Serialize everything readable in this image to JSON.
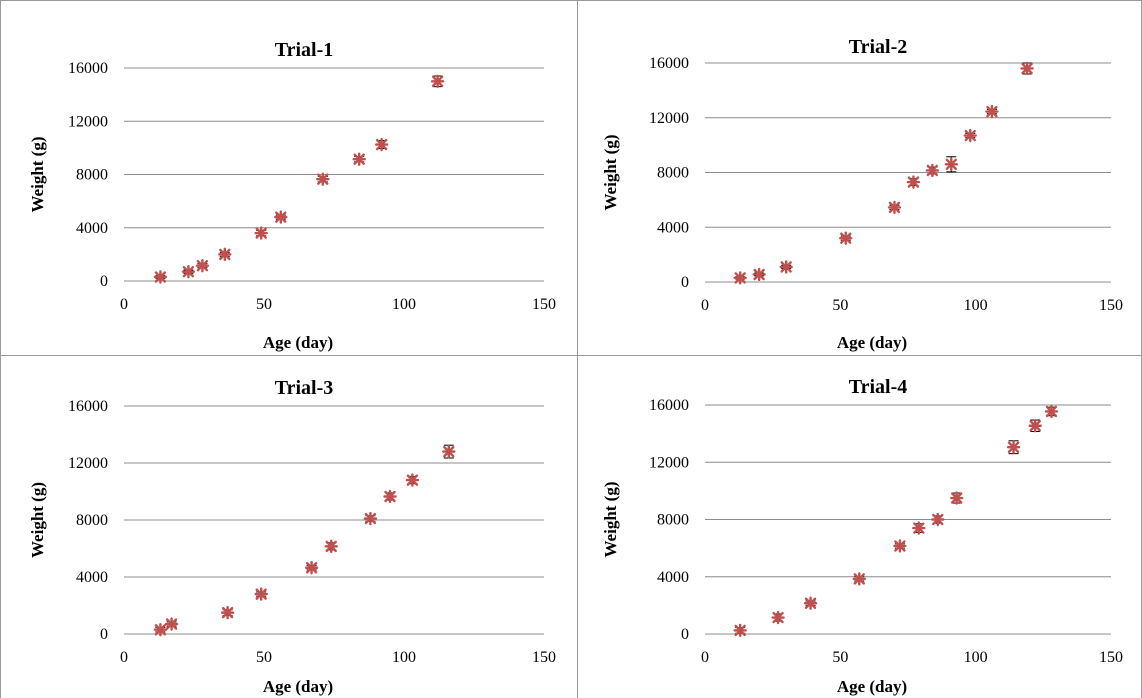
{
  "chart_data": [
    {
      "type": "scatter",
      "title": "Trial-1",
      "xlabel": "Age (day)",
      "ylabel": "Weight (g)",
      "xlim": [
        0,
        150
      ],
      "ylim": [
        0,
        16000
      ],
      "xticks": [
        "0",
        "50",
        "100",
        "150"
      ],
      "yticks": [
        "0",
        "4000",
        "8000",
        "12000",
        "16000"
      ],
      "grid": "horizontal",
      "marker_color": "#c0504d",
      "series": [
        {
          "x": [
            13,
            23,
            28,
            36,
            49,
            56,
            71,
            84,
            92,
            112
          ],
          "y": [
            300,
            700,
            1150,
            2000,
            3600,
            4800,
            7650,
            9150,
            10250,
            15000
          ],
          "error": [
            100,
            120,
            150,
            150,
            200,
            150,
            200,
            200,
            300,
            400
          ]
        }
      ]
    },
    {
      "type": "scatter",
      "title": "Trial-2",
      "xlabel": "Age (day)",
      "ylabel": "Weight (g)",
      "xlim": [
        0,
        150
      ],
      "ylim": [
        0,
        16000
      ],
      "xticks": [
        "0",
        "50",
        "100",
        "150"
      ],
      "yticks": [
        "0",
        "4000",
        "8000",
        "12000",
        "16000"
      ],
      "grid": "horizontal",
      "marker_color": "#c0504d",
      "series": [
        {
          "x": [
            13,
            20,
            30,
            52,
            70,
            77,
            84,
            91,
            98,
            106,
            119
          ],
          "y": [
            300,
            550,
            1100,
            3200,
            5450,
            7300,
            8150,
            8600,
            10700,
            12450,
            15600
          ],
          "error": [
            80,
            100,
            120,
            150,
            150,
            250,
            250,
            550,
            150,
            150,
            400
          ]
        }
      ]
    },
    {
      "type": "scatter",
      "title": "Trial-3",
      "xlabel": "Age (day)",
      "ylabel": "Weight (g)",
      "xlim": [
        0,
        150
      ],
      "ylim": [
        0,
        16000
      ],
      "xticks": [
        "0",
        "50",
        "100",
        "150"
      ],
      "yticks": [
        "0",
        "4000",
        "8000",
        "12000",
        "16000"
      ],
      "grid": "horizontal",
      "marker_color": "#c0504d",
      "series": [
        {
          "x": [
            13,
            17,
            37,
            49,
            67,
            74,
            88,
            95,
            103,
            116
          ],
          "y": [
            300,
            700,
            1500,
            2800,
            4650,
            6150,
            8100,
            9650,
            10800,
            12800
          ],
          "error": [
            150,
            150,
            200,
            150,
            150,
            250,
            200,
            250,
            250,
            450
          ]
        }
      ]
    },
    {
      "type": "scatter",
      "title": "Trial-4",
      "xlabel": "Age (day)",
      "ylabel": "Weight (g)",
      "xlim": [
        0,
        150
      ],
      "ylim": [
        0,
        16000
      ],
      "xticks": [
        "0",
        "50",
        "100",
        "150"
      ],
      "yticks": [
        "0",
        "4000",
        "8000",
        "12000",
        "16000"
      ],
      "grid": "horizontal",
      "marker_color": "#c0504d",
      "series": [
        {
          "x": [
            13,
            27,
            39,
            57,
            72,
            79,
            86,
            93,
            114,
            122,
            128
          ],
          "y": [
            250,
            1150,
            2150,
            3850,
            6150,
            7400,
            8000,
            9500,
            13050,
            14550,
            15550
          ],
          "error": [
            200,
            250,
            150,
            150,
            150,
            300,
            250,
            350,
            450,
            400,
            300
          ]
        }
      ]
    }
  ]
}
